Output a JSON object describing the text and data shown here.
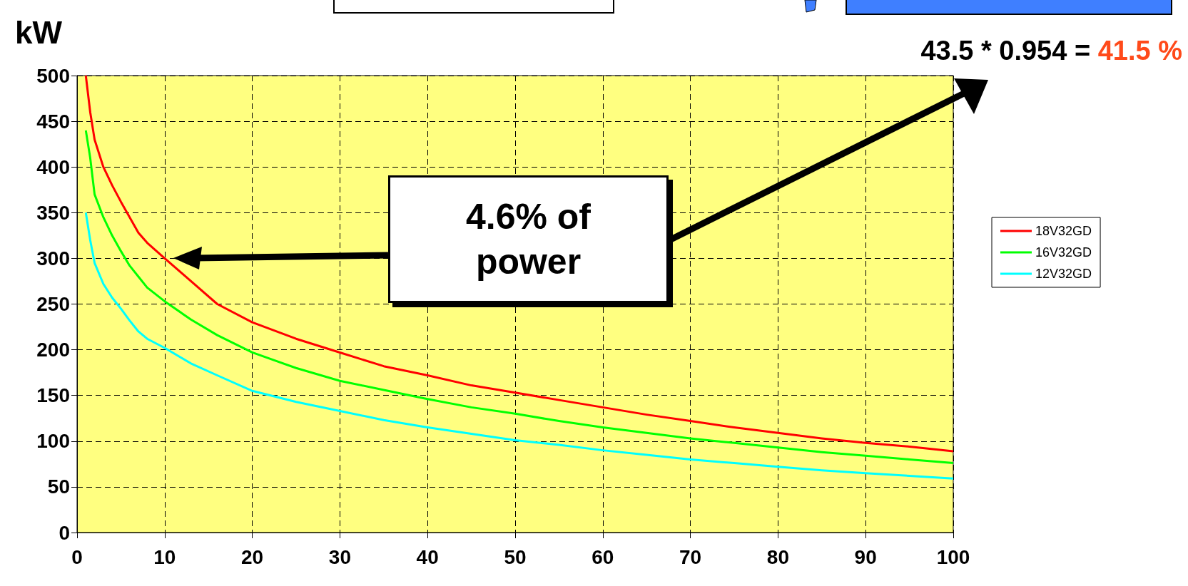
{
  "chart_data": {
    "type": "line",
    "ylabel": "kW",
    "x": [
      1,
      1.5,
      2,
      3,
      4,
      5,
      6,
      7,
      8,
      10,
      13,
      16,
      20,
      25,
      30,
      35,
      40,
      45,
      50,
      55,
      60,
      65,
      70,
      75,
      80,
      85,
      90,
      95,
      100
    ],
    "series": [
      {
        "name": "18V32GD",
        "color": "#ff0000",
        "values": [
          500,
          460,
          430,
          400,
          380,
          362,
          345,
          328,
          317,
          300,
          275,
          250,
          230,
          212,
          197,
          182,
          172,
          161,
          153,
          145,
          137,
          129,
          122,
          115,
          109,
          103,
          98,
          94,
          89
        ]
      },
      {
        "name": "16V32GD",
        "color": "#00ff00",
        "values": [
          440,
          410,
          370,
          345,
          325,
          308,
          292,
          280,
          268,
          253,
          233,
          216,
          197,
          180,
          166,
          156,
          146,
          137,
          130,
          122,
          115,
          109,
          103,
          98,
          93,
          88,
          84,
          80,
          76
        ]
      },
      {
        "name": "12V32GD",
        "color": "#00ffff",
        "values": [
          350,
          320,
          295,
          272,
          257,
          245,
          232,
          220,
          212,
          202,
          185,
          172,
          155,
          143,
          133,
          123,
          115,
          108,
          101,
          96,
          90,
          85,
          80,
          76,
          72,
          68,
          65,
          62,
          59
        ]
      }
    ],
    "xlim": [
      0,
      100
    ],
    "xticks": [
      0,
      10,
      20,
      30,
      40,
      50,
      60,
      70,
      80,
      90,
      100
    ],
    "ylim": [
      0,
      500
    ],
    "yticks": [
      0,
      50,
      100,
      150,
      200,
      250,
      300,
      350,
      400,
      450,
      500
    ],
    "grid": true,
    "legend": "right",
    "marker": "none",
    "line_style": "solid",
    "annotations": [
      "4.6% of power",
      "43.5 * 0.954 =",
      "41.5 %"
    ]
  }
}
